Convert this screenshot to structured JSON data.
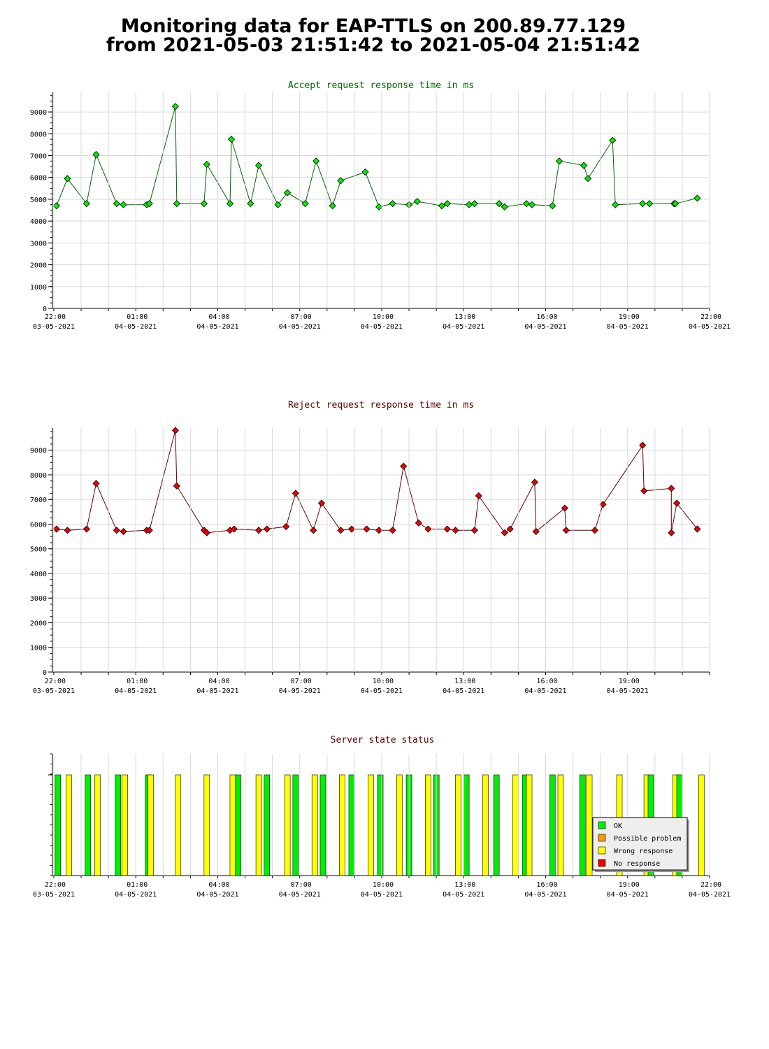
{
  "header": {
    "line1": "Monitoring data for EAP-TTLS on 200.89.77.129",
    "line2": "from 2021-05-03 21:51:42 to 2021-05-04 21:51:42"
  },
  "colors": {
    "accept_line": "#006400",
    "accept_marker": "#00ee00",
    "accept_title": "#006400",
    "reject_line": "#600000",
    "reject_marker": "#ee0000",
    "reject_title": "#600000",
    "status_title": "#600000",
    "grid": "#d8d8d8",
    "ok": "#00ee00",
    "possible_problem": "#ff9900",
    "wrong_response": "#ffff00",
    "no_response": "#ee0000"
  },
  "chart_data": [
    {
      "type": "line",
      "title": "Accept request response time in ms",
      "x_unit": "hours since 2021-05-03 22:00",
      "xlim": [
        -0.05,
        24
      ],
      "ylim": [
        0,
        9900
      ],
      "yticks": [
        0,
        1000,
        2000,
        3000,
        4000,
        5000,
        6000,
        7000,
        8000,
        9000
      ],
      "xticks": [
        {
          "time": "22:00",
          "date": "03-05-2021"
        },
        {
          "time": "01:00",
          "date": "04-05-2021"
        },
        {
          "time": "04:00",
          "date": "04-05-2021"
        },
        {
          "time": "07:00",
          "date": "04-05-2021"
        },
        {
          "time": "10:00",
          "date": "04-05-2021"
        },
        {
          "time": "13:00",
          "date": "04-05-2021"
        },
        {
          "time": "16:00",
          "date": "04-05-2021"
        },
        {
          "time": "19:00",
          "date": "04-05-2021"
        },
        {
          "time": "22:00",
          "date": "04-05-2021"
        }
      ],
      "grid": true,
      "series": [
        {
          "x": [
            0.1,
            0.5,
            1.2,
            1.55,
            2.3,
            2.55,
            3.4,
            3.5,
            4.45,
            4.5,
            5.5,
            5.6,
            6.45,
            6.5,
            7.2,
            7.5,
            8.2,
            8.55,
            9.2,
            9.6,
            10.2,
            10.5,
            11.4,
            11.9,
            12.4,
            13.0,
            13.3,
            14.2,
            14.4,
            15.2,
            15.4,
            16.3,
            16.5,
            17.3,
            17.5,
            18.25,
            18.5,
            19.4,
            19.55,
            20.45,
            20.55,
            21.55,
            21.8,
            22.7,
            22.75,
            23.55
          ],
          "y": [
            4700,
            5950,
            4800,
            7050,
            4800,
            4750,
            4750,
            4800,
            9250,
            4800,
            4800,
            6600,
            4800,
            7750,
            4800,
            6550,
            4750,
            5300,
            4800,
            6750,
            4700,
            5850,
            6250,
            4650,
            4800,
            4750,
            4900,
            4700,
            4800,
            4750,
            4800,
            4800,
            4650,
            4800,
            4750,
            4700,
            6750,
            6550,
            5950,
            7700,
            4750,
            4800,
            4800,
            4800,
            4800,
            5050
          ]
        }
      ]
    },
    {
      "type": "line",
      "title": "Reject request response time in ms",
      "x_unit": "hours since 2021-05-03 22:00",
      "xlim": [
        -0.05,
        24
      ],
      "ylim": [
        0,
        9900
      ],
      "yticks": [
        0,
        1000,
        2000,
        3000,
        4000,
        5000,
        6000,
        7000,
        8000,
        9000
      ],
      "xticks": [
        {
          "time": "22:00",
          "date": "03-05-2021"
        },
        {
          "time": "01:00",
          "date": "04-05-2021"
        },
        {
          "time": "04:00",
          "date": "04-05-2021"
        },
        {
          "time": "07:00",
          "date": "04-05-2021"
        },
        {
          "time": "10:00",
          "date": "04-05-2021"
        },
        {
          "time": "13:00",
          "date": "04-05-2021"
        },
        {
          "time": "16:00",
          "date": "04-05-2021"
        },
        {
          "time": "19:00",
          "date": "04-05-2021"
        }
      ],
      "grid": true,
      "series": [
        {
          "x": [
            0.1,
            0.5,
            1.2,
            1.55,
            2.3,
            2.55,
            3.4,
            3.5,
            4.45,
            4.5,
            5.5,
            5.6,
            6.45,
            6.6,
            7.5,
            7.8,
            8.5,
            8.85,
            9.5,
            9.8,
            10.5,
            10.9,
            11.45,
            11.9,
            12.4,
            12.8,
            13.35,
            13.7,
            14.4,
            14.7,
            15.4,
            15.55,
            16.5,
            16.7,
            17.6,
            17.65,
            18.7,
            18.75,
            19.8,
            20.1,
            21.55,
            21.6,
            22.6,
            22.6,
            22.8,
            23.55
          ],
          "y": [
            5800,
            5750,
            5800,
            7650,
            5750,
            5700,
            5750,
            5750,
            9800,
            7550,
            5750,
            5650,
            5750,
            5800,
            5750,
            5800,
            5900,
            7250,
            5750,
            6850,
            5750,
            5800,
            5800,
            5750,
            5750,
            8350,
            6050,
            5800,
            5800,
            5750,
            5750,
            7150,
            5650,
            5800,
            7700,
            5700,
            6650,
            5750,
            5750,
            6800,
            9200,
            7350,
            7450,
            5650,
            6850,
            5800
          ]
        }
      ]
    },
    {
      "type": "bar",
      "title": "Server state status",
      "x_unit": "hours since 2021-05-03 22:00",
      "xlim": [
        -0.05,
        24
      ],
      "xticks": [
        {
          "time": "22:00",
          "date": "03-05-2021"
        },
        {
          "time": "01:00",
          "date": "04-05-2021"
        },
        {
          "time": "04:00",
          "date": "04-05-2021"
        },
        {
          "time": "07:00",
          "date": "04-05-2021"
        },
        {
          "time": "10:00",
          "date": "04-05-2021"
        },
        {
          "time": "13:00",
          "date": "04-05-2021"
        },
        {
          "time": "16:00",
          "date": "04-05-2021"
        },
        {
          "time": "19:00",
          "date": "04-05-2021"
        },
        {
          "time": "22:00",
          "date": "04-05-2021"
        }
      ],
      "legend": {
        "position": "bottom-right",
        "entries": [
          {
            "label": "OK",
            "state": "ok"
          },
          {
            "label": "Possible problem",
            "state": "possible_problem"
          },
          {
            "label": "Wrong response",
            "state": "wrong_response"
          },
          {
            "label": "No response",
            "state": "no_response"
          }
        ]
      },
      "bars": [
        {
          "x": 0.15,
          "state": "ok"
        },
        {
          "x": 0.55,
          "state": "wrong_response"
        },
        {
          "x": 1.25,
          "state": "ok"
        },
        {
          "x": 1.6,
          "state": "wrong_response"
        },
        {
          "x": 2.35,
          "state": "ok"
        },
        {
          "x": 2.6,
          "state": "wrong_response"
        },
        {
          "x": 3.45,
          "state": "ok"
        },
        {
          "x": 3.55,
          "state": "wrong_response"
        },
        {
          "x": 4.55,
          "state": "wrong_response"
        },
        {
          "x": 5.6,
          "state": "wrong_response"
        },
        {
          "x": 6.55,
          "state": "wrong_response"
        },
        {
          "x": 6.75,
          "state": "ok"
        },
        {
          "x": 7.5,
          "state": "wrong_response"
        },
        {
          "x": 7.8,
          "state": "ok"
        },
        {
          "x": 8.55,
          "state": "wrong_response"
        },
        {
          "x": 8.85,
          "state": "ok"
        },
        {
          "x": 9.55,
          "state": "wrong_response"
        },
        {
          "x": 9.85,
          "state": "ok"
        },
        {
          "x": 10.55,
          "state": "wrong_response"
        },
        {
          "x": 10.9,
          "state": "ok"
        },
        {
          "x": 11.6,
          "state": "wrong_response"
        },
        {
          "x": 11.95,
          "state": "ok"
        },
        {
          "x": 12.65,
          "state": "wrong_response"
        },
        {
          "x": 13.0,
          "state": "ok"
        },
        {
          "x": 13.7,
          "state": "wrong_response"
        },
        {
          "x": 14.0,
          "state": "ok"
        },
        {
          "x": 14.8,
          "state": "wrong_response"
        },
        {
          "x": 15.1,
          "state": "ok"
        },
        {
          "x": 15.8,
          "state": "wrong_response"
        },
        {
          "x": 16.2,
          "state": "ok"
        },
        {
          "x": 16.9,
          "state": "wrong_response"
        },
        {
          "x": 17.25,
          "state": "ok"
        },
        {
          "x": 17.4,
          "state": "wrong_response"
        },
        {
          "x": 18.25,
          "state": "ok"
        },
        {
          "x": 18.55,
          "state": "wrong_response"
        },
        {
          "x": 19.35,
          "state": "ok"
        },
        {
          "x": 19.6,
          "state": "wrong_response"
        },
        {
          "x": 20.7,
          "state": "wrong_response"
        },
        {
          "x": 21.7,
          "state": "wrong_response"
        },
        {
          "x": 21.85,
          "state": "ok"
        },
        {
          "x": 22.75,
          "state": "wrong_response"
        },
        {
          "x": 22.9,
          "state": "ok"
        },
        {
          "x": 23.7,
          "state": "wrong_response"
        }
      ]
    }
  ]
}
